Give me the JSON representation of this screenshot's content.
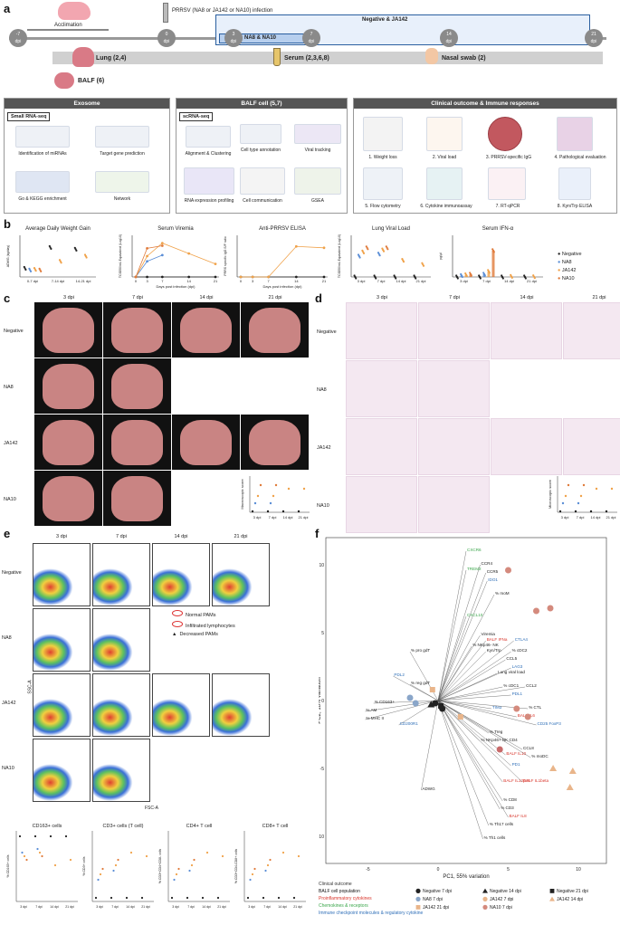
{
  "panels": {
    "a": "a",
    "b": "b",
    "c": "c",
    "d": "d",
    "e": "e",
    "f": "f"
  },
  "timeline": {
    "acclimation": "Acclimation",
    "infection": "PRRSV (NA8 or JA142 or NA10) infection",
    "days": [
      {
        "n": "-7",
        "u": "dpi"
      },
      {
        "n": "0",
        "u": "dpi"
      },
      {
        "n": "3",
        "u": "dpi"
      },
      {
        "n": "7",
        "u": "dpi"
      },
      {
        "n": "14",
        "u": "dpi"
      },
      {
        "n": "21",
        "u": "dpi"
      }
    ],
    "group1": "Negative & JA142",
    "group2": "NA8 & NA10",
    "lung": "Lung (2,4)",
    "serum": "Serum (2,3,6,8)",
    "nasal": "Nasal swab (2)",
    "balf": "BALF (6)"
  },
  "exosome": {
    "title": "Exosome",
    "sub": "Small RNA-seq",
    "items": [
      "Identification of miRNAs",
      "Target gene prediction",
      "Go & KEGG enrichment",
      "Network"
    ]
  },
  "balfcell": {
    "title": "BALF cell (5,7)",
    "sub": "scRNA-seq",
    "items": [
      "Alignment & Clustering",
      "Cell type annotation",
      "Viral tracking",
      "RNA expression profiling",
      "Cell communication",
      "GSEA"
    ]
  },
  "clinical": {
    "title": "Clinical outcome & Immune responses",
    "items": [
      "1. Weight loss",
      "2. Viral load",
      "3. PRRSV-specific IgG",
      "4. Pathological evaluation",
      "5. Flow cytometry",
      "6. Cytokine immunoassay",
      "7. RT-qPCR",
      "8. Kyn/Trp ELISA"
    ]
  },
  "colors": {
    "Negative": "#222222",
    "NA8": "#5b8ed6",
    "JA142": "#f0a24a",
    "NA10": "#e07a3a",
    "red": "#d9352b",
    "green": "#3aa64a",
    "blue": "#2f6fb8"
  },
  "chart_data": [
    {
      "type": "scatter",
      "title": "Average Daily Weight Gain",
      "ylabel": "ADWG (kg/day)",
      "categories": [
        "0-7 dpi",
        "7-14 dpi",
        "14-21 dpi"
      ],
      "series": [
        {
          "name": "Negative",
          "values": [
            0.25,
            0.85,
            0.8
          ]
        },
        {
          "name": "NA8",
          "values": [
            0.2,
            null,
            null
          ]
        },
        {
          "name": "JA142",
          "values": [
            0.22,
            0.45,
            0.6
          ]
        },
        {
          "name": "NA10",
          "values": [
            0.2,
            null,
            null
          ]
        }
      ],
      "ylim": [
        0,
        1.2
      ]
    },
    {
      "type": "line",
      "title": "Serum Viremia",
      "xlabel": "Days post infection (dpi)",
      "ylabel": "TCID50/mL Equivalent (Log10)",
      "x": [
        0,
        3,
        7,
        14,
        21
      ],
      "series": [
        {
          "name": "Negative",
          "values": [
            0,
            0,
            0,
            0,
            0
          ]
        },
        {
          "name": "NA8",
          "values": [
            0,
            3,
            4.2,
            null,
            null
          ]
        },
        {
          "name": "JA142",
          "values": [
            0,
            4,
            6.5,
            4.5,
            2.5
          ]
        },
        {
          "name": "NA10",
          "values": [
            0,
            5.5,
            6,
            null,
            null
          ]
        }
      ],
      "ylim": [
        0,
        8
      ]
    },
    {
      "type": "line",
      "title": "Anti-PRRSV ELISA",
      "xlabel": "Days post infection (dpi)",
      "ylabel": "PRRS specific IgG S/P ratio",
      "x": [
        0,
        3,
        7,
        14,
        21
      ],
      "series": [
        {
          "name": "Negative",
          "values": [
            0,
            0,
            0,
            0,
            0
          ]
        },
        {
          "name": "JA142",
          "values": [
            0,
            0,
            0,
            2.2,
            2.1
          ]
        }
      ],
      "ylim": [
        0,
        3
      ]
    },
    {
      "type": "scatter",
      "title": "Lung Viral Load",
      "ylabel": "TCID50/mL Equivalent (Log10)",
      "categories": [
        "3 dpi",
        "7 dpi",
        "14 dpi",
        "21 dpi"
      ],
      "series": [
        {
          "name": "Negative",
          "values": [
            0,
            0,
            0,
            0
          ]
        },
        {
          "name": "NA8",
          "values": [
            5,
            5.5,
            null,
            null
          ]
        },
        {
          "name": "JA142",
          "values": [
            6,
            6.5,
            4,
            3
          ]
        },
        {
          "name": "NA10",
          "values": [
            7,
            7,
            null,
            null
          ]
        }
      ],
      "ylim": [
        0,
        10
      ]
    },
    {
      "type": "bar",
      "title": "Serum IFN-α",
      "ylabel": "pg/μl",
      "categories": [
        "3 dpi",
        "7 dpi",
        "14 dpi",
        "21 dpi"
      ],
      "series": [
        {
          "name": "Negative",
          "values": [
            0,
            0,
            0,
            0
          ]
        },
        {
          "name": "NA8",
          "values": [
            5,
            10,
            null,
            null
          ]
        },
        {
          "name": "JA142",
          "values": [
            8,
            20,
            2,
            1
          ]
        },
        {
          "name": "NA10",
          "values": [
            10,
            95,
            null,
            null
          ]
        }
      ],
      "ylim": [
        0,
        150
      ]
    }
  ],
  "legend": [
    "Negative",
    "NA8",
    "JA142",
    "NA10"
  ],
  "grid": {
    "cols": [
      "3 dpi",
      "7 dpi",
      "14 dpi",
      "21 dpi"
    ],
    "rows": [
      "Negative",
      "NA8",
      "JA142",
      "NA10"
    ]
  },
  "macro": {
    "ylabel": "Macroscopic score",
    "cats": [
      "3 dpi",
      "7 dpi",
      "14 dpi",
      "21 dpi"
    ]
  },
  "micro": {
    "ylabel": "Microscopic score",
    "cats": [
      "3 dpi",
      "7 dpi",
      "14 dpi",
      "21 dpi"
    ]
  },
  "flow": {
    "ssc": "SSC-A",
    "fsc": "FSC-A",
    "legend": [
      "Normal PAMs",
      "Infiltrated lymphocytes",
      "Decreased PAMs"
    ]
  },
  "cells": [
    {
      "title": "CD163+ cells",
      "ylabel": "% CD163+ cells"
    },
    {
      "title": "CD3+ cells (T cell)",
      "ylabel": "% CD3+ cells"
    },
    {
      "title": "CD4+ T cell",
      "ylabel": "% CD3+CD4+CD8- cells"
    },
    {
      "title": "CD8+ T cell",
      "ylabel": "% CD3+CD4-CD8+ cells"
    }
  ],
  "cells_cats": [
    "3 dpi",
    "7 dpi",
    "14 dpi",
    "21 dpi"
  ],
  "pca": {
    "xlabel": "PC1, 55% variation",
    "ylabel": "PC2, 18% variation",
    "xticks": [
      "-5",
      "0",
      "5",
      "10"
    ],
    "yticks": [
      "10",
      "5",
      "0",
      "-5",
      "-10"
    ],
    "vectors": [
      {
        "t": "CXCR6",
        "c": "green"
      },
      {
        "t": "CCR4",
        "c": "black"
      },
      {
        "t": "CCR5",
        "c": "black"
      },
      {
        "t": "TREM2",
        "c": "green"
      },
      {
        "t": "IDO1",
        "c": "blue"
      },
      {
        "t": "% moM",
        "c": "black"
      },
      {
        "t": "CXCL10",
        "c": "green"
      },
      {
        "t": "Viremia",
        "c": "black"
      },
      {
        "t": "BALF IFNa",
        "c": "red"
      },
      {
        "t": "CTLA4",
        "c": "blue"
      },
      {
        "t": "% NKp46- NK",
        "c": "black"
      },
      {
        "t": "Kyn/Trp",
        "c": "black"
      },
      {
        "t": "% cDC2",
        "c": "black"
      },
      {
        "t": "CCL5",
        "c": "black"
      },
      {
        "t": "LAG3",
        "c": "blue"
      },
      {
        "t": "Lung viral load",
        "c": "black"
      },
      {
        "t": "% pro gdT",
        "c": "black"
      },
      {
        "t": "% reg gdT",
        "c": "black"
      },
      {
        "t": "% cDC1",
        "c": "black"
      },
      {
        "t": "CCL2",
        "c": "black"
      },
      {
        "t": "PDL1",
        "c": "blue"
      },
      {
        "t": "TIM3",
        "c": "blue"
      },
      {
        "t": "% CTL",
        "c": "black"
      },
      {
        "t": "BALF IL6",
        "c": "red"
      },
      {
        "t": "CD25 FoxP3",
        "c": "blue"
      },
      {
        "t": "% Treg",
        "c": "black"
      },
      {
        "t": "% NKp46+ NK",
        "c": "black"
      },
      {
        "t": "CD4",
        "c": "black"
      },
      {
        "t": "CCL8",
        "c": "black"
      },
      {
        "t": "BALF IL10",
        "c": "red"
      },
      {
        "t": "% moDC",
        "c": "black"
      },
      {
        "t": "PD1",
        "c": "blue"
      },
      {
        "t": "BALF IL12p40",
        "c": "red"
      },
      {
        "t": "BALF IL1beta",
        "c": "red"
      },
      {
        "t": "% CD8",
        "c": "black"
      },
      {
        "t": "% CD3",
        "c": "black"
      },
      {
        "t": "BALF IL8",
        "c": "red"
      },
      {
        "t": "% Th17 cells",
        "c": "black"
      },
      {
        "t": "% Th1 cells",
        "c": "black"
      },
      {
        "t": "PDL2",
        "c": "blue"
      },
      {
        "t": "% CD163+",
        "c": "black"
      },
      {
        "t": "% AM",
        "c": "black"
      },
      {
        "t": "% MHC II",
        "c": "black"
      },
      {
        "t": "CD200R1",
        "c": "blue"
      },
      {
        "t": "ADWG",
        "c": "black"
      }
    ],
    "legend_left": [
      {
        "t": "Clinical outcome",
        "c": "#333"
      },
      {
        "t": "BALF cell population",
        "c": "#111"
      },
      {
        "t": "Proinflammatory cytokines",
        "c": "#d9352b"
      },
      {
        "t": "Chemokines & receptors",
        "c": "#3aa64a"
      },
      {
        "t": "Immune checkpoint molecules & regulatory cytokine",
        "c": "#2f6fb8"
      }
    ],
    "legend_groups": [
      "Negative 7 dpi",
      "Negative 14 dpi",
      "Negative 21 dpi",
      "NA8 7 dpi",
      "JA142 7 dpi",
      "JA142 14 dpi",
      "JA142 21 dpi",
      "NA10 7 dpi"
    ]
  }
}
